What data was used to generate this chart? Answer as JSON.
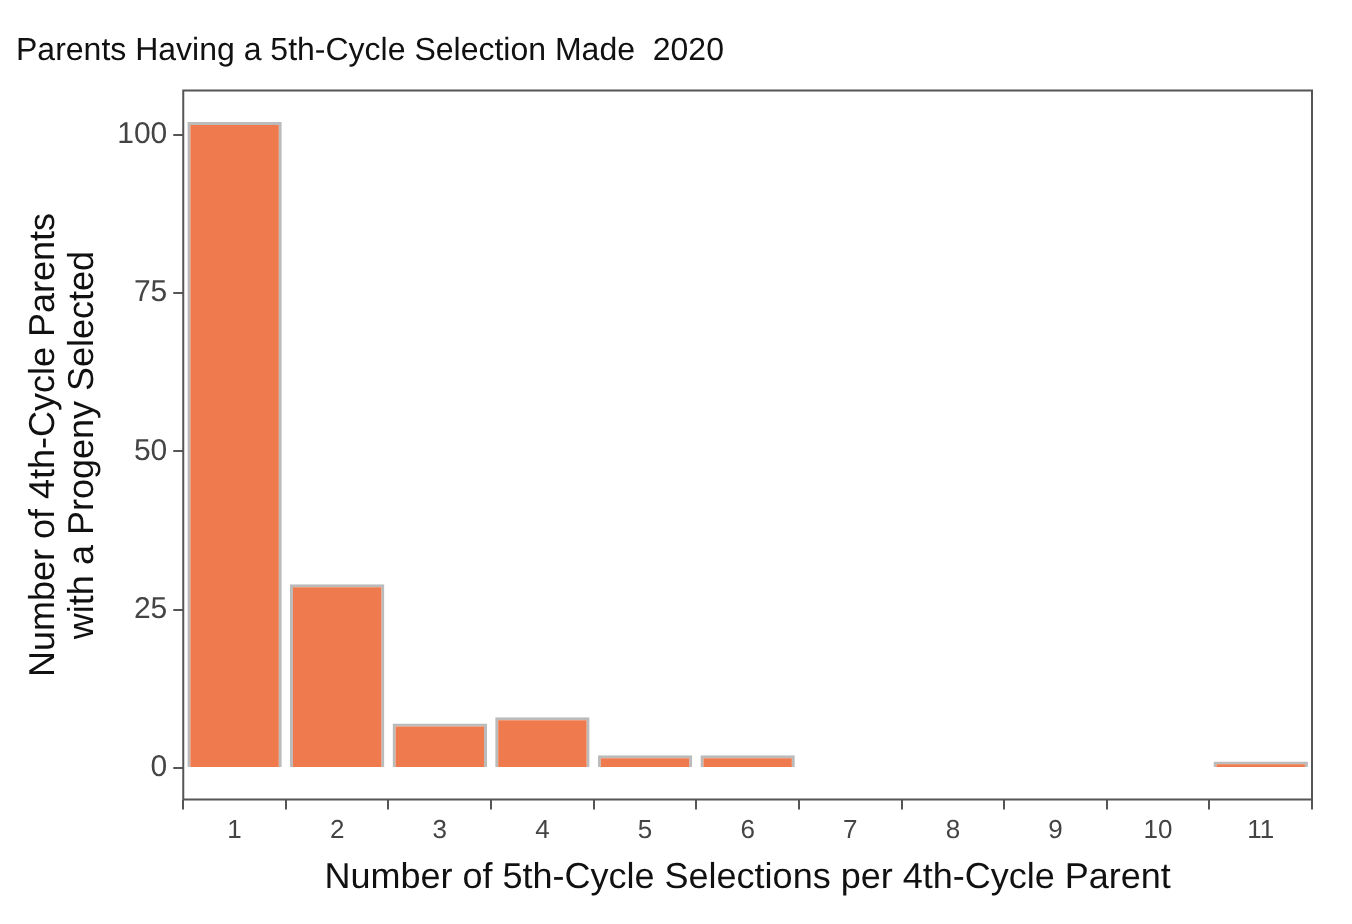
{
  "chart_data": {
    "type": "bar",
    "title": "Parents Having a 5th-Cycle Selection Made  2020",
    "xlabel": "Number of 5th-Cycle Selections per 4th-Cycle Parent",
    "ylabel": "Number of 4th-Cycle Parents with a Progeny Selected",
    "categories": [
      "1",
      "2",
      "3",
      "4",
      "5",
      "6",
      "7",
      "8",
      "9",
      "10",
      "11"
    ],
    "values": [
      102,
      29,
      7,
      8,
      2,
      2,
      0,
      0,
      0,
      0,
      1
    ],
    "color": "#ef7a4d",
    "ylim": [
      -5,
      107
    ],
    "yticks": [
      0,
      25,
      50,
      75,
      100
    ],
    "grid": false,
    "legend": false
  }
}
